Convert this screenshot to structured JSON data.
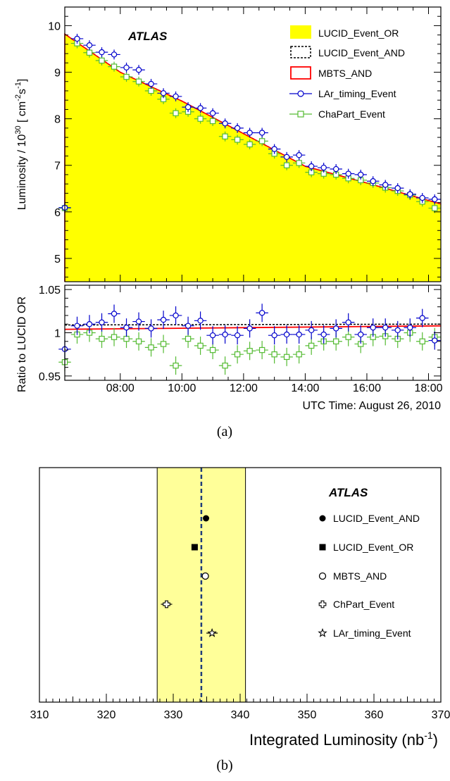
{
  "chart_data": [
    {
      "panel": "a-top",
      "type": "line",
      "brand": "ATLAS",
      "ylabel_main": "Luminosity / 10",
      "ylabel_exp": "30",
      "ylabel_unit_pre": " [ cm",
      "ylabel_unit_exp1": "-2",
      "ylabel_unit_mid": "s",
      "ylabel_unit_exp2": "-1",
      "ylabel_unit_post": "]",
      "ylim": [
        4.5,
        10.4
      ],
      "yticks": [
        "5",
        "6",
        "7",
        "8",
        "9",
        "10"
      ],
      "xlim": [
        6.2,
        18.4
      ],
      "legend": [
        {
          "label": "LUCID_Event_OR",
          "color": "#ffff00"
        },
        {
          "label": "LUCID_Event_AND",
          "color": "#000000"
        },
        {
          "label": "MBTS_AND",
          "color": "#ff0000"
        },
        {
          "label": "LAr_timing_Event",
          "color": "#0000cc"
        },
        {
          "label": "ChaPart_Event",
          "color": "#55bb33"
        }
      ],
      "lucid_or_curve": {
        "x": [
          6.2,
          8.0,
          10.0,
          12.0,
          14.0,
          16.0,
          18.4
        ],
        "y": [
          9.82,
          9.0,
          8.38,
          7.68,
          6.98,
          6.62,
          6.17
        ]
      },
      "lar_timing": {
        "x": [
          6.2,
          6.6,
          7.0,
          7.4,
          7.8,
          8.2,
          8.6,
          9.0,
          9.4,
          9.8,
          10.2,
          10.6,
          11.0,
          11.4,
          11.8,
          12.2,
          12.6,
          13.0,
          13.4,
          13.8,
          14.2,
          14.6,
          15.0,
          15.4,
          15.8,
          16.2,
          16.6,
          17.0,
          17.4,
          17.8,
          18.2
        ],
        "y": [
          6.09,
          9.72,
          9.58,
          9.43,
          9.38,
          9.1,
          9.05,
          8.75,
          8.55,
          8.48,
          8.25,
          8.23,
          8.12,
          7.9,
          7.8,
          7.7,
          7.7,
          7.35,
          7.18,
          7.22,
          6.98,
          6.95,
          6.92,
          6.82,
          6.8,
          6.66,
          6.58,
          6.51,
          6.38,
          6.3,
          6.27
        ]
      },
      "chapart": {
        "x": [
          6.2,
          6.6,
          7.0,
          7.4,
          7.8,
          8.2,
          8.6,
          9.0,
          9.4,
          9.8,
          10.2,
          10.6,
          11.0,
          11.4,
          11.8,
          12.2,
          12.6,
          13.0,
          13.4,
          13.8,
          14.2,
          14.6,
          15.0,
          15.4,
          15.8,
          16.2,
          16.6,
          17.0,
          17.4,
          17.8,
          18.2
        ],
        "y": [
          6.08,
          9.62,
          9.42,
          9.25,
          9.12,
          8.9,
          8.8,
          8.6,
          8.42,
          8.12,
          8.15,
          8.0,
          7.95,
          7.62,
          7.55,
          7.45,
          7.52,
          7.25,
          7.0,
          7.05,
          6.85,
          6.82,
          6.8,
          6.72,
          6.68,
          6.62,
          6.52,
          6.45,
          6.36,
          6.22,
          6.08
        ]
      }
    },
    {
      "panel": "a-bottom",
      "type": "scatter",
      "ylabel": "Ratio to LUCID OR",
      "xlabel": "UTC Time: August 26, 2010",
      "ylim": [
        0.945,
        1.055
      ],
      "yticks": [
        "0.95",
        "1",
        "1.05"
      ],
      "yticks_values": [
        0.95,
        1.0,
        1.05
      ],
      "xlim": [
        6.2,
        18.4
      ],
      "xticks": [
        "08:00",
        "10:00",
        "12:00",
        "14:00",
        "16:00",
        "18:00"
      ],
      "xticks_values": [
        8,
        10,
        12,
        14,
        16,
        18
      ],
      "lucid_and_ratio": {
        "x": [
          6.2,
          18.4
        ],
        "y": [
          1.009,
          1.01
        ]
      },
      "mbts_ratio": {
        "x": [
          6.2,
          18.4
        ],
        "y": [
          1.004,
          1.008
        ]
      },
      "lar_ratio": {
        "x": [
          6.2,
          6.6,
          7.0,
          7.4,
          7.8,
          8.2,
          8.6,
          9.0,
          9.4,
          9.8,
          10.2,
          10.6,
          11.0,
          11.4,
          11.8,
          12.2,
          12.6,
          13.0,
          13.4,
          13.8,
          14.2,
          14.6,
          15.0,
          15.4,
          15.8,
          16.2,
          16.6,
          17.0,
          17.4,
          17.8,
          18.2
        ],
        "y": [
          0.981,
          1.008,
          1.01,
          1.012,
          1.022,
          1.006,
          1.013,
          1.005,
          1.015,
          1.02,
          1.008,
          1.014,
          0.997,
          0.998,
          0.997,
          1.005,
          1.023,
          0.997,
          0.998,
          0.998,
          1.003,
          0.998,
          1.005,
          1.012,
          0.998,
          1.006,
          1.006,
          1.003,
          1.006,
          1.017,
          0.991
        ]
      },
      "chapart_ratio": {
        "x": [
          6.2,
          6.6,
          7.0,
          7.4,
          7.8,
          8.2,
          8.6,
          9.0,
          9.4,
          9.8,
          10.2,
          10.6,
          11.0,
          11.4,
          11.8,
          12.2,
          12.6,
          13.0,
          13.4,
          13.8,
          14.2,
          14.6,
          15.0,
          15.4,
          15.8,
          16.2,
          16.6,
          17.0,
          17.4,
          17.8,
          18.2
        ],
        "y": [
          0.966,
          0.998,
          1.0,
          0.993,
          0.995,
          0.993,
          0.99,
          0.983,
          0.987,
          0.962,
          0.993,
          0.985,
          0.98,
          0.962,
          0.975,
          0.979,
          0.98,
          0.975,
          0.972,
          0.975,
          0.985,
          0.99,
          0.99,
          0.995,
          0.987,
          0.995,
          0.996,
          0.993,
          1.0,
          0.99,
          0.995
        ]
      }
    },
    {
      "panel": "b",
      "type": "scatter",
      "brand": "ATLAS",
      "xlabel_main": "Integrated Luminosity (nb",
      "xlabel_exp": "-1",
      "xlabel_post": ")",
      "xlim": [
        310,
        370
      ],
      "xticks": [
        "310",
        "320",
        "330",
        "340",
        "350",
        "360",
        "370"
      ],
      "xticks_values": [
        310,
        320,
        330,
        340,
        350,
        360,
        370
      ],
      "mean": 334.2,
      "band": [
        327.6,
        340.8
      ],
      "band_color": "#ffff99",
      "points": [
        {
          "label": "LUCID_Event_AND",
          "value": 334.9,
          "marker": "filled-circle"
        },
        {
          "label": "LUCID_Event_OR",
          "value": 333.2,
          "marker": "filled-square"
        },
        {
          "label": "MBTS_AND",
          "value": 334.8,
          "marker": "open-circle"
        },
        {
          "label": "ChPart_Event",
          "value": 329.0,
          "marker": "open-cross"
        },
        {
          "label": "LAr_timing_Event",
          "value": 335.8,
          "marker": "open-star"
        }
      ]
    }
  ],
  "captions": {
    "a": "(a)",
    "b": "(b)"
  }
}
